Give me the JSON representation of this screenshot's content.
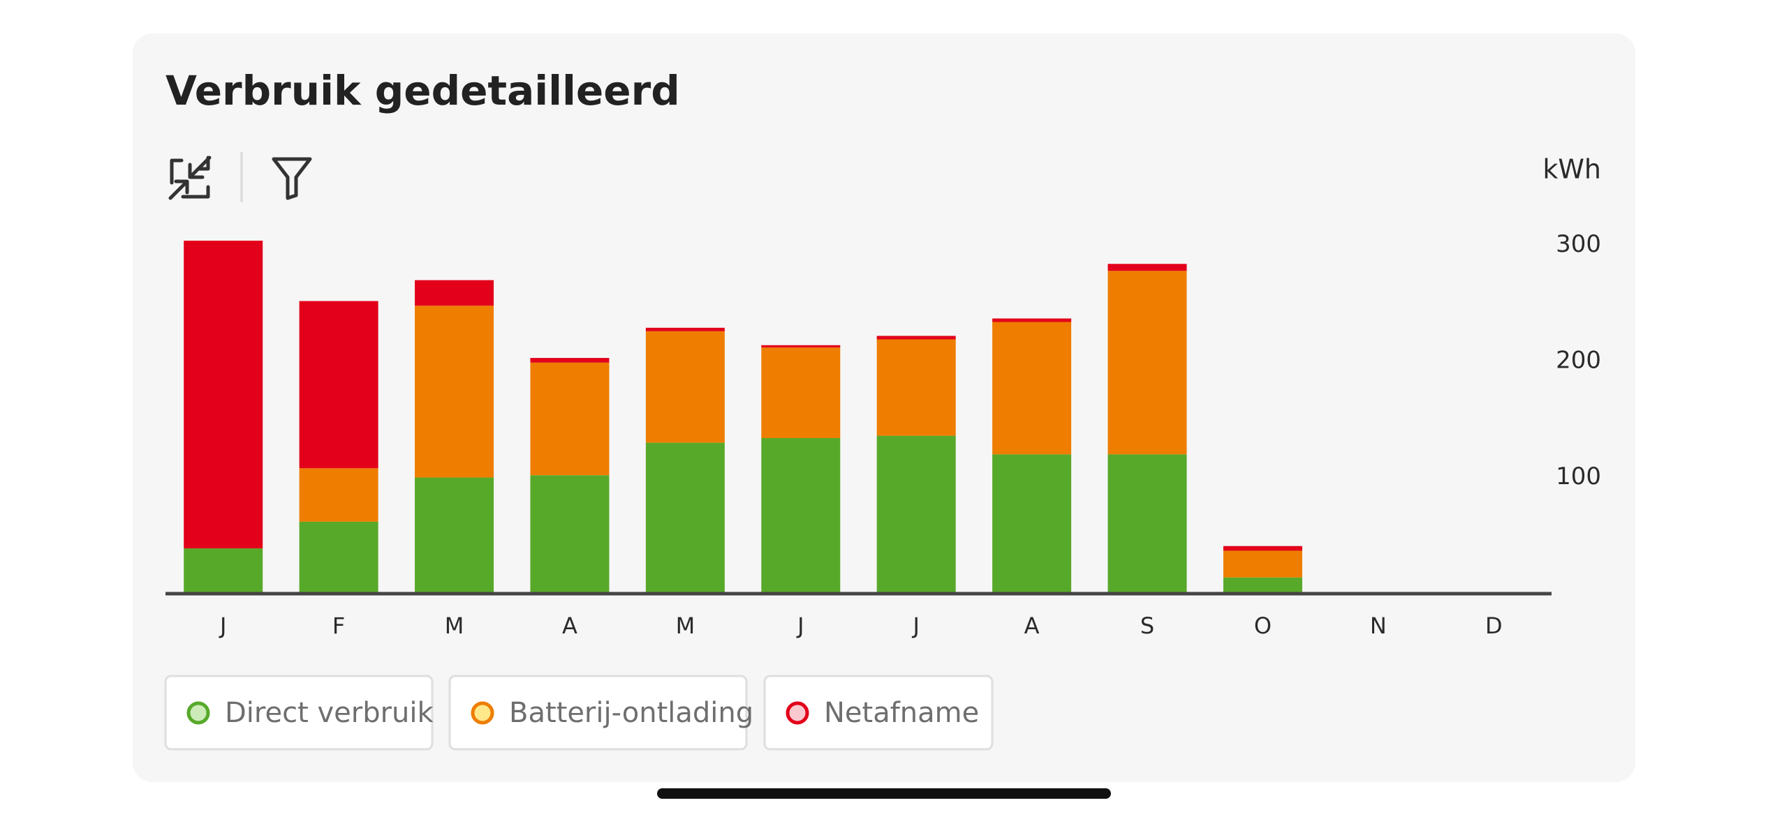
{
  "chart_data": {
    "type": "stacked-bar",
    "title": "Verbruik gedetailleerd",
    "y_label": "kWh",
    "categories": [
      "J",
      "F",
      "M",
      "A",
      "M",
      "J",
      "J",
      "A",
      "S",
      "O",
      "N",
      "D"
    ],
    "series": [
      {
        "name": "Direct verbruik",
        "color": "#57a92a",
        "values": [
          39,
          62,
          100,
          102,
          130,
          134,
          136,
          120,
          120,
          14,
          null,
          null
        ]
      },
      {
        "name": "Batterij-ontlading",
        "color": "#ee7d00",
        "values": [
          0,
          46,
          148,
          97,
          96,
          78,
          83,
          114,
          158,
          23,
          null,
          null
        ]
      },
      {
        "name": "Netafname",
        "color": "#e2001a",
        "values": [
          265,
          144,
          22,
          4,
          3,
          2,
          3,
          3,
          6,
          4,
          null,
          null
        ]
      }
    ],
    "ylim": [
      0,
      310
    ],
    "yticks": [
      100,
      200,
      300
    ],
    "grid": false
  }
}
